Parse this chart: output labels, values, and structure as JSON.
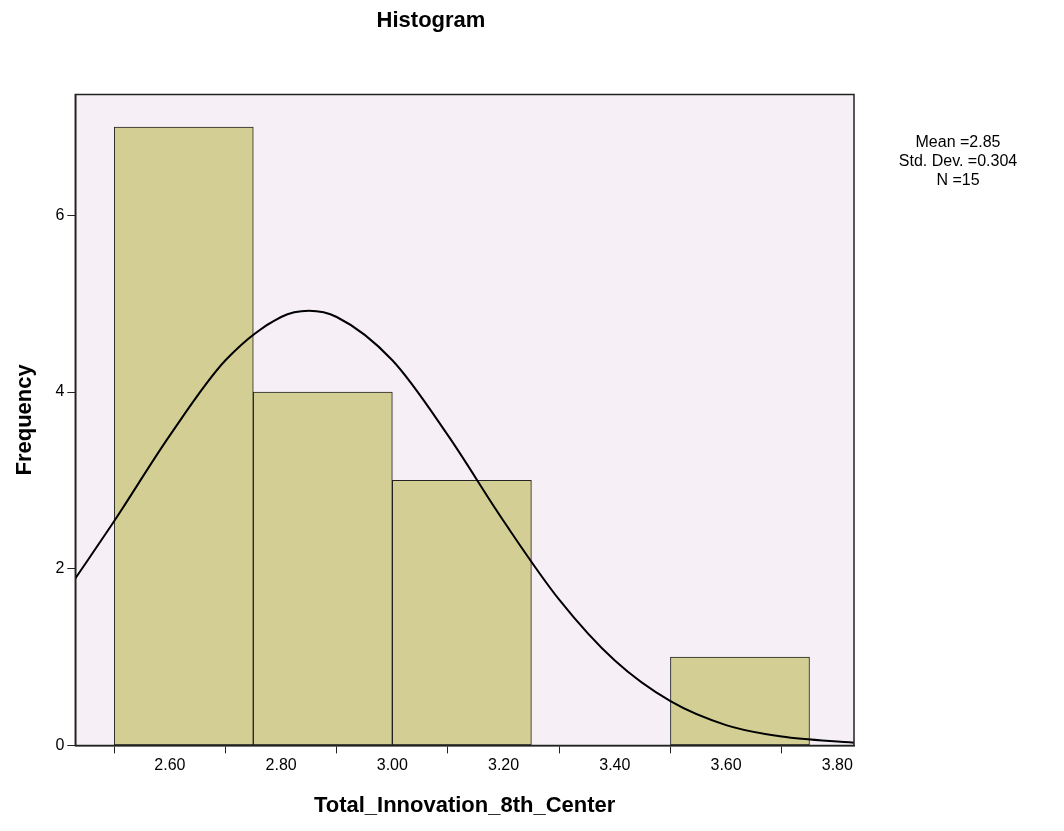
{
  "chart_data": {
    "type": "histogram",
    "title": "Histogram",
    "xlabel": "Total_Innovation_8th_Center",
    "ylabel": "Frequency",
    "bins": [
      2.5,
      2.75,
      3.0,
      3.25,
      3.5,
      3.75
    ],
    "values": [
      7,
      4,
      3,
      0,
      1
    ],
    "color": "#d3ce94",
    "series": [
      {
        "type": "line",
        "color": "#000000",
        "x": [
          2.43,
          2.5,
          2.6,
          2.7,
          2.8,
          2.85,
          2.9,
          3.0,
          3.1,
          3.2,
          3.3,
          3.4,
          3.5,
          3.6,
          3.7,
          3.83
        ],
        "values": [
          1.89,
          2.54,
          3.51,
          4.36,
          4.85,
          4.92,
          4.85,
          4.36,
          3.51,
          2.54,
          1.65,
          0.96,
          0.5,
          0.23,
          0.1,
          0.03
        ]
      }
    ],
    "xlim": [
      2.43,
      3.83
    ],
    "xticks": [
      {
        "value": 2.6,
        "label": "2.60"
      },
      {
        "value": 2.8,
        "label": "2.80"
      },
      {
        "value": 3.0,
        "label": "3.00"
      },
      {
        "value": 3.2,
        "label": "3.20"
      },
      {
        "value": 3.4,
        "label": "3.40"
      },
      {
        "value": 3.6,
        "label": "3.60"
      },
      {
        "value": 3.8,
        "label": "3.80"
      }
    ],
    "ylim": [
      0,
      7.37
    ],
    "yticks": [
      0,
      2,
      4,
      6
    ],
    "marker": "none",
    "grid": false,
    "legend": false,
    "annotations": [
      "Mean =2.85",
      "Std. Dev. =0.304",
      "N =15"
    ]
  }
}
